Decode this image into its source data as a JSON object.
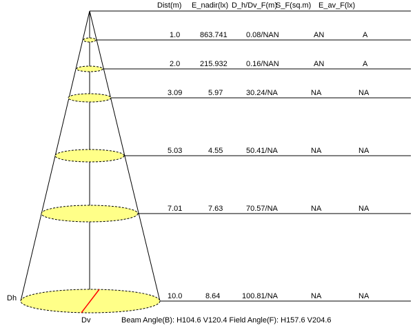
{
  "header": {
    "dist": "Dist(m)",
    "e_nadir": "E_nadir(lx)",
    "d_h_v": "D_h/Dv_F(m)",
    "s_f": "S_F(sq.m)",
    "e_av": "E_av_F(lx)"
  },
  "rows": [
    {
      "dist": "1.0",
      "e_nadir": "863.741",
      "dhv": "0.08/NAN",
      "s_f": "AN",
      "e_av": "A"
    },
    {
      "dist": "2.0",
      "e_nadir": "215.932",
      "dhv": "0.16/NAN",
      "s_f": "AN",
      "e_av": "A"
    },
    {
      "dist": "3.09",
      "e_nadir": "5.97",
      "dhv": "30.24/NA",
      "s_f": "NA",
      "e_av": "NA"
    },
    {
      "dist": "5.03",
      "e_nadir": "4.55",
      "dhv": "50.41/NA",
      "s_f": "NA",
      "e_av": "NA"
    },
    {
      "dist": "7.01",
      "e_nadir": "7.63",
      "dhv": "70.57/NA",
      "s_f": "NA",
      "e_av": "NA"
    },
    {
      "dist": "10.0",
      "e_nadir": "8.64",
      "dhv": "100.81/NA",
      "s_f": "NA",
      "e_av": "NA"
    }
  ],
  "labels": {
    "dh": "Dh",
    "dv": "Dv",
    "angles": "Beam Angle(B): H104.6 V120.4  Field Angle(F): H157.6 V204.6"
  },
  "colors": {
    "ellipse_fill": "#ffff88",
    "diameter_line": "#ff0000",
    "lines": "#000000"
  }
}
